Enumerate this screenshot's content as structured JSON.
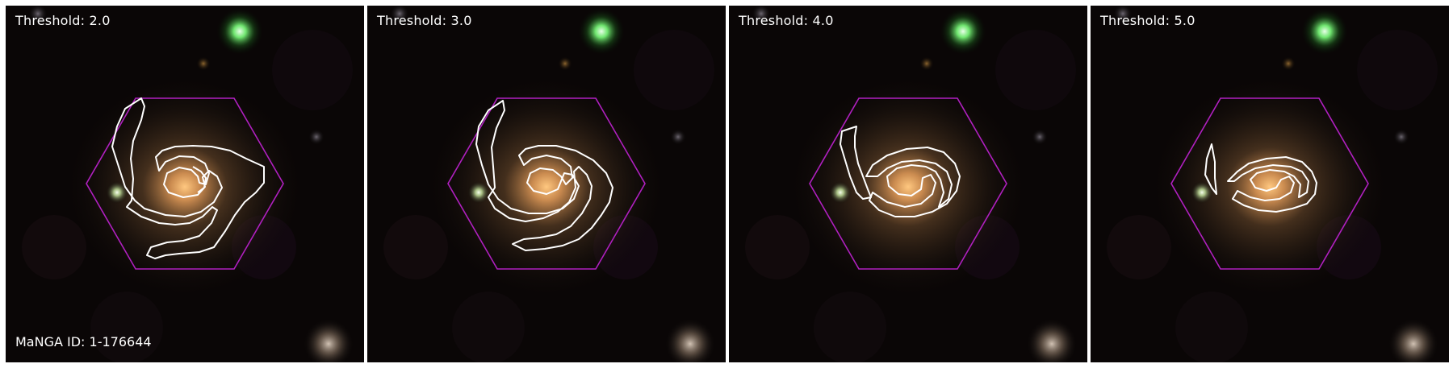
{
  "panels": [
    {
      "threshold_label": "Threshold: 2.0"
    },
    {
      "threshold_label": "Threshold: 3.0"
    },
    {
      "threshold_label": "Threshold: 4.0"
    },
    {
      "threshold_label": "Threshold: 5.0"
    }
  ],
  "manga_id_label": "MaNGA ID: 1-176644",
  "colors": {
    "hexagon": "#b020c0",
    "contour": "#ffffff",
    "sky": "#0a0606",
    "galaxy_core": "#ffb060",
    "green_star": "#7cff7c"
  },
  "icons": [
    "galaxy-image",
    "hexagon-ifu-footprint",
    "spiral-arm-contour"
  ]
}
